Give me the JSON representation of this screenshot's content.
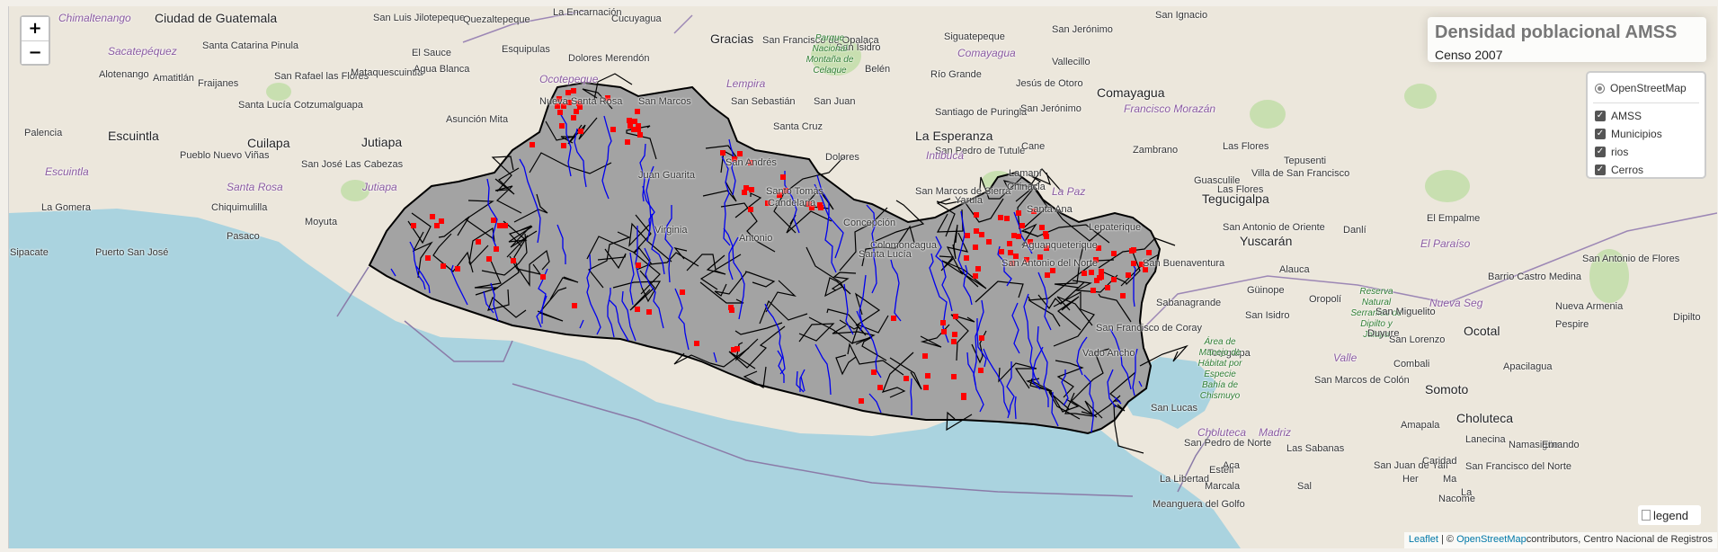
{
  "map": {
    "zoom_in": "+",
    "zoom_out": "−",
    "title": "Densidad poblacional AMSS",
    "subtitle": "Censo 2007",
    "base_layers": [
      {
        "label": "OpenStreetMap",
        "selected": true
      }
    ],
    "overlays": [
      {
        "label": "AMSS",
        "checked": true
      },
      {
        "label": "Municipios",
        "checked": true
      },
      {
        "label": "rios",
        "checked": true
      },
      {
        "label": "Cerros",
        "checked": true
      }
    ],
    "legend_alt": "legend",
    "attribution": {
      "leaflet": "Leaflet",
      "separator": " | © ",
      "osm": "OpenStreetMap",
      "rest": "contributors, Centro Nacional de Registros"
    },
    "colors": {
      "sea": "#aad3df",
      "land": "#ece7dc",
      "country_fill": "#a3a3a3",
      "boundary": "#000000",
      "rivers": "#0000ff",
      "cerros": "#ff0000",
      "zoom_icon": "plus-minus-icons"
    }
  },
  "places": [
    {
      "name": "Chimaltenango",
      "cls": "region"
    },
    {
      "name": "Ciudad de Guatemala",
      "cls": "big"
    },
    {
      "name": "San Luis Jilotepeque",
      "cls": ""
    },
    {
      "name": "Quezaltepeque",
      "cls": ""
    },
    {
      "name": "La Encarnación",
      "cls": ""
    },
    {
      "name": "Cucuyagua",
      "cls": ""
    },
    {
      "name": "Gracias",
      "cls": "big"
    },
    {
      "name": "San Francisco de Opalaca",
      "cls": ""
    },
    {
      "name": "San Isidro",
      "cls": ""
    },
    {
      "name": "Siguatepeque",
      "cls": ""
    },
    {
      "name": "San Jerónimo",
      "cls": ""
    },
    {
      "name": "San Ignacio",
      "cls": ""
    },
    {
      "name": "Sacatepéquez",
      "cls": "region"
    },
    {
      "name": "Santa Catarina Pinula",
      "cls": ""
    },
    {
      "name": "El Sauce",
      "cls": ""
    },
    {
      "name": "Esquipulas",
      "cls": ""
    },
    {
      "name": "Dolores Merendón",
      "cls": ""
    },
    {
      "name": "Comayagua",
      "cls": "region"
    },
    {
      "name": "Vallecillo",
      "cls": ""
    },
    {
      "name": "Alotenango",
      "cls": ""
    },
    {
      "name": "Amatitlán",
      "cls": ""
    },
    {
      "name": "Fraijanes",
      "cls": ""
    },
    {
      "name": "San Rafael las Flores",
      "cls": ""
    },
    {
      "name": "Mataquescuintla",
      "cls": ""
    },
    {
      "name": "Agua Blanca",
      "cls": ""
    },
    {
      "name": "Ocotepeque",
      "cls": "region"
    },
    {
      "name": "Parque Nacional Montaña de Celaque",
      "cls": "park"
    },
    {
      "name": "Lempira",
      "cls": "region"
    },
    {
      "name": "Belén",
      "cls": ""
    },
    {
      "name": "Río Grande",
      "cls": ""
    },
    {
      "name": "Jesús de Otoro",
      "cls": ""
    },
    {
      "name": "Comayagua",
      "cls": "big"
    },
    {
      "name": "Palencia",
      "cls": ""
    },
    {
      "name": "Santa Lucía Cotzumalguapa",
      "cls": ""
    },
    {
      "name": "Nueva Santa Rosa",
      "cls": ""
    },
    {
      "name": "San Marcos",
      "cls": ""
    },
    {
      "name": "San Sebastián",
      "cls": ""
    },
    {
      "name": "San Juan",
      "cls": ""
    },
    {
      "name": "Santiago de Puringla",
      "cls": ""
    },
    {
      "name": "San Jerónimo",
      "cls": ""
    },
    {
      "name": "Escuintla",
      "cls": "big"
    },
    {
      "name": "Cuilapa",
      "cls": "big"
    },
    {
      "name": "Jutiapa",
      "cls": "big"
    },
    {
      "name": "Asunción Mita",
      "cls": ""
    },
    {
      "name": "Santa Cruz",
      "cls": ""
    },
    {
      "name": "La Esperanza",
      "cls": "big"
    },
    {
      "name": "San Pedro de Tutule",
      "cls": ""
    },
    {
      "name": "Cane",
      "cls": ""
    },
    {
      "name": "Zambrano",
      "cls": ""
    },
    {
      "name": "Francisco Morazán",
      "cls": "region"
    },
    {
      "name": "Las Flores",
      "cls": ""
    },
    {
      "name": "Pueblo Nuevo Viñas",
      "cls": ""
    },
    {
      "name": "San José Las Cabezas",
      "cls": ""
    },
    {
      "name": "Juan Guarita",
      "cls": ""
    },
    {
      "name": "Intibucá",
      "cls": "region"
    },
    {
      "name": "San Andrés",
      "cls": ""
    },
    {
      "name": "Dolores",
      "cls": ""
    },
    {
      "name": "Lamaní",
      "cls": ""
    },
    {
      "name": "Las Flores",
      "cls": ""
    },
    {
      "name": "Tepusenti",
      "cls": ""
    },
    {
      "name": "Escuintla",
      "cls": "region"
    },
    {
      "name": "Santa Rosa",
      "cls": "region"
    },
    {
      "name": "Jutiapa",
      "cls": "region"
    },
    {
      "name": "Santo Tomás",
      "cls": ""
    },
    {
      "name": "Candelaria",
      "cls": ""
    },
    {
      "name": "San Marcos de Sierra",
      "cls": ""
    },
    {
      "name": "Yarula",
      "cls": ""
    },
    {
      "name": "Chinacla",
      "cls": ""
    },
    {
      "name": "La Paz",
      "cls": "region"
    },
    {
      "name": "Guasculile",
      "cls": ""
    },
    {
      "name": "Villa de San Francisco",
      "cls": ""
    },
    {
      "name": "La Gomera",
      "cls": ""
    },
    {
      "name": "Chiquimulilla",
      "cls": ""
    },
    {
      "name": "Tegucigalpa",
      "cls": "big"
    },
    {
      "name": "Moyuta",
      "cls": ""
    },
    {
      "name": "Concepción",
      "cls": ""
    },
    {
      "name": "Santa Ana",
      "cls": ""
    },
    {
      "name": "Lepaterique",
      "cls": ""
    },
    {
      "name": "San Antonio de Oriente",
      "cls": ""
    },
    {
      "name": "Danlí",
      "cls": ""
    },
    {
      "name": "El Empalme",
      "cls": ""
    },
    {
      "name": "Pasaco",
      "cls": ""
    },
    {
      "name": "Virginia",
      "cls": ""
    },
    {
      "name": "Antonio",
      "cls": ""
    },
    {
      "name": "Colomoncagua",
      "cls": ""
    },
    {
      "name": "Aguanqueterique",
      "cls": ""
    },
    {
      "name": "Yuscarán",
      "cls": "big"
    },
    {
      "name": "El Paraíso",
      "cls": "region"
    },
    {
      "name": "Sipacate",
      "cls": ""
    },
    {
      "name": "Puerto San José",
      "cls": ""
    },
    {
      "name": "Santa Lucía",
      "cls": ""
    },
    {
      "name": "San Antonio del Norte",
      "cls": ""
    },
    {
      "name": "San Buenaventura",
      "cls": ""
    },
    {
      "name": "Alauca",
      "cls": ""
    },
    {
      "name": "Barrio Castro Medina",
      "cls": ""
    },
    {
      "name": "Sabanagrande",
      "cls": ""
    },
    {
      "name": "Güinope",
      "cls": ""
    },
    {
      "name": "Oropolí",
      "cls": ""
    },
    {
      "name": "Reserva Natural Serranías de Dipilto y Jalapa",
      "cls": "park"
    },
    {
      "name": "Nueva Seg",
      "cls": "region"
    },
    {
      "name": "San Miguelito",
      "cls": ""
    },
    {
      "name": "Nueva Armenia",
      "cls": ""
    },
    {
      "name": "San Antonio de Flores",
      "cls": ""
    },
    {
      "name": "Dipilto",
      "cls": ""
    },
    {
      "name": "San Francisco de Coray",
      "cls": ""
    },
    {
      "name": "San Isidro",
      "cls": ""
    },
    {
      "name": "Duyure",
      "cls": ""
    },
    {
      "name": "Ocotal",
      "cls": "big"
    },
    {
      "name": "Pespire",
      "cls": ""
    },
    {
      "name": "Vado Ancho",
      "cls": ""
    },
    {
      "name": "Totogalpa",
      "cls": ""
    },
    {
      "name": "Valle",
      "cls": "region"
    },
    {
      "name": "Combali",
      "cls": ""
    },
    {
      "name": "Apacilagua",
      "cls": ""
    },
    {
      "name": "Área de Manejo de Hábitat por Especie Bahía de Chismuyo",
      "cls": "park"
    },
    {
      "name": "San Lorenzo",
      "cls": ""
    },
    {
      "name": "San Marcos de Colón",
      "cls": ""
    },
    {
      "name": "Somoto",
      "cls": "big"
    },
    {
      "name": "San Lucas",
      "cls": ""
    },
    {
      "name": "Choluteca",
      "cls": "region"
    },
    {
      "name": "Madriz",
      "cls": "region"
    },
    {
      "name": "Amapala",
      "cls": ""
    },
    {
      "name": "Choluteca",
      "cls": "big"
    },
    {
      "name": "San Pedro de Norte",
      "cls": ""
    },
    {
      "name": "Las Sabanas",
      "cls": ""
    },
    {
      "name": "Namasigüe",
      "cls": ""
    },
    {
      "name": "San Juan de Yalí",
      "cls": ""
    },
    {
      "name": "Estelí",
      "cls": ""
    },
    {
      "name": "San Francisco del Norte",
      "cls": ""
    },
    {
      "name": "La Libertad",
      "cls": ""
    },
    {
      "name": "Aca",
      "cls": ""
    },
    {
      "name": "Sal",
      "cls": ""
    },
    {
      "name": "Her",
      "cls": ""
    },
    {
      "name": "Ma",
      "cls": ""
    },
    {
      "name": "La",
      "cls": ""
    },
    {
      "name": "Meanguera del Golfo",
      "cls": ""
    },
    {
      "name": "Marcala",
      "cls": ""
    },
    {
      "name": "Nacome",
      "cls": ""
    },
    {
      "name": "Caridad",
      "cls": ""
    },
    {
      "name": "Lanecina",
      "cls": ""
    },
    {
      "name": "Ernando",
      "cls": ""
    }
  ]
}
